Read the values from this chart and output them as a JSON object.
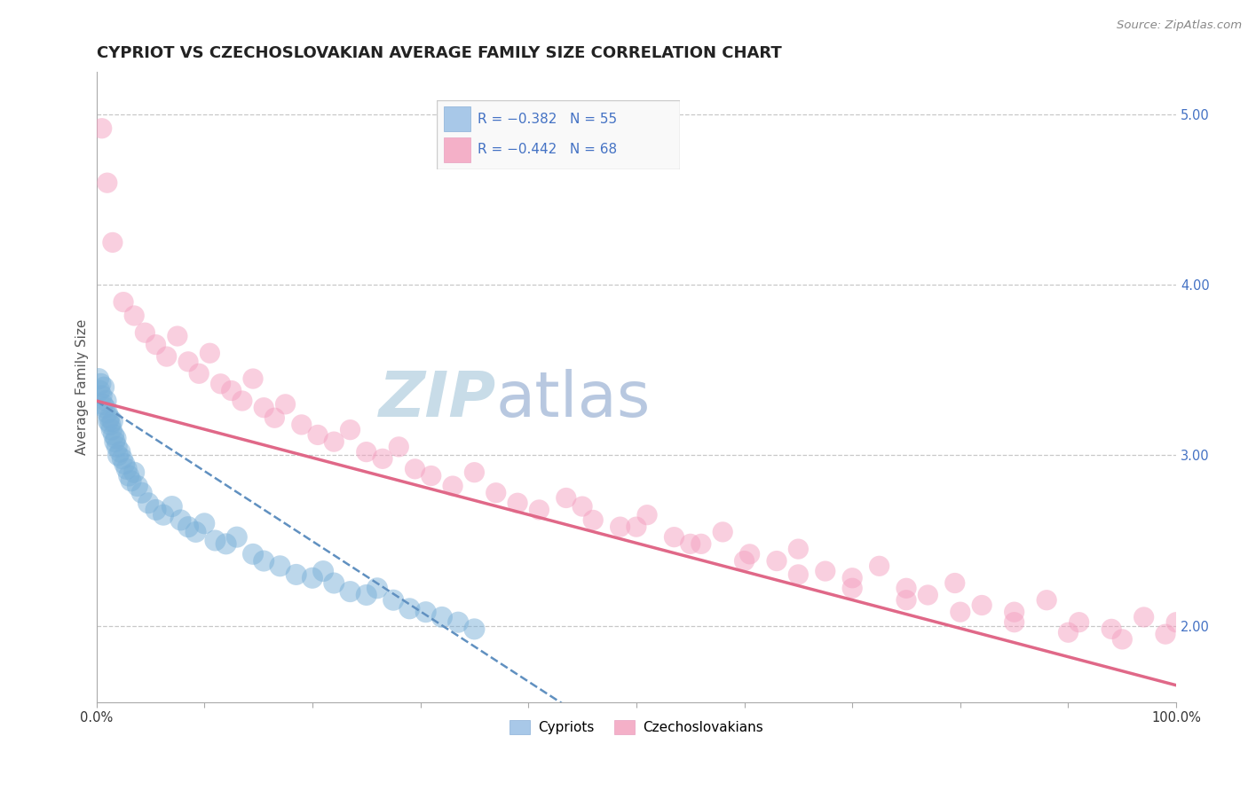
{
  "title": "CYPRIOT VS CZECHOSLOVAKIAN AVERAGE FAMILY SIZE CORRELATION CHART",
  "source": "Source: ZipAtlas.com",
  "ylabel": "Average Family Size",
  "xlim": [
    0,
    100
  ],
  "ylim": [
    1.55,
    5.25
  ],
  "yticks": [
    2.0,
    3.0,
    4.0,
    5.0
  ],
  "xtick_positions": [
    0,
    10,
    20,
    30,
    40,
    50,
    60,
    70,
    80,
    90,
    100
  ],
  "xtick_labels_show": {
    "0": "0.0%",
    "100": "100.0%"
  },
  "ytick_labels": [
    "2.00",
    "3.00",
    "4.00",
    "5.00"
  ],
  "legend_r1": "R = −0.382   N = 55",
  "legend_r2": "R = −0.442   N = 68",
  "legend_color1": "#a8c8e8",
  "legend_color2": "#f4b0c8",
  "legend_text_color": "#4472c4",
  "cypriot_color": "#7ab0d8",
  "czechoslovakian_color": "#f4a0c0",
  "cypriot_line_color": "#6090c0",
  "czechoslovakian_line_color": "#e06888",
  "background_color": "#ffffff",
  "grid_color": "#c8c8c8",
  "watermark_zip": "ZIP",
  "watermark_atlas": "atlas",
  "watermark_color_zip": "#c8dce8",
  "watermark_color_atlas": "#b8c8e0",
  "cypriot_x": [
    0.2,
    0.3,
    0.4,
    0.5,
    0.6,
    0.7,
    0.8,
    0.9,
    1.0,
    1.1,
    1.2,
    1.3,
    1.4,
    1.5,
    1.6,
    1.7,
    1.8,
    1.9,
    2.0,
    2.2,
    2.4,
    2.6,
    2.8,
    3.0,
    3.2,
    3.5,
    3.8,
    4.2,
    4.8,
    5.5,
    6.2,
    7.0,
    7.8,
    8.5,
    9.2,
    10.0,
    11.0,
    12.0,
    13.0,
    14.5,
    15.5,
    17.0,
    18.5,
    20.0,
    21.0,
    22.0,
    23.5,
    25.0,
    26.0,
    27.5,
    29.0,
    30.5,
    32.0,
    33.5,
    35.0
  ],
  "cypriot_y": [
    3.45,
    3.38,
    3.42,
    3.35,
    3.3,
    3.4,
    3.28,
    3.32,
    3.25,
    3.2,
    3.22,
    3.18,
    3.15,
    3.2,
    3.12,
    3.08,
    3.1,
    3.05,
    3.0,
    3.02,
    2.98,
    2.95,
    2.92,
    2.88,
    2.85,
    2.9,
    2.82,
    2.78,
    2.72,
    2.68,
    2.65,
    2.7,
    2.62,
    2.58,
    2.55,
    2.6,
    2.5,
    2.48,
    2.52,
    2.42,
    2.38,
    2.35,
    2.3,
    2.28,
    2.32,
    2.25,
    2.2,
    2.18,
    2.22,
    2.15,
    2.1,
    2.08,
    2.05,
    2.02,
    1.98
  ],
  "czechoslovakian_x": [
    0.5,
    1.0,
    1.5,
    2.5,
    3.5,
    4.5,
    5.5,
    6.5,
    7.5,
    8.5,
    9.5,
    10.5,
    11.5,
    12.5,
    13.5,
    14.5,
    15.5,
    16.5,
    17.5,
    19.0,
    20.5,
    22.0,
    23.5,
    25.0,
    26.5,
    28.0,
    29.5,
    31.0,
    33.0,
    35.0,
    37.0,
    39.0,
    41.0,
    43.5,
    46.0,
    48.5,
    51.0,
    53.5,
    56.0,
    58.0,
    60.5,
    63.0,
    65.0,
    67.5,
    70.0,
    72.5,
    75.0,
    77.0,
    79.5,
    82.0,
    85.0,
    88.0,
    91.0,
    94.0,
    97.0,
    99.0,
    65.0,
    70.0,
    75.0,
    80.0,
    85.0,
    90.0,
    95.0,
    100.0,
    50.0,
    55.0,
    60.0,
    45.0
  ],
  "czechoslovakian_y": [
    4.92,
    4.6,
    4.25,
    3.9,
    3.82,
    3.72,
    3.65,
    3.58,
    3.7,
    3.55,
    3.48,
    3.6,
    3.42,
    3.38,
    3.32,
    3.45,
    3.28,
    3.22,
    3.3,
    3.18,
    3.12,
    3.08,
    3.15,
    3.02,
    2.98,
    3.05,
    2.92,
    2.88,
    2.82,
    2.9,
    2.78,
    2.72,
    2.68,
    2.75,
    2.62,
    2.58,
    2.65,
    2.52,
    2.48,
    2.55,
    2.42,
    2.38,
    2.45,
    2.32,
    2.28,
    2.35,
    2.22,
    2.18,
    2.25,
    2.12,
    2.08,
    2.15,
    2.02,
    1.98,
    2.05,
    1.95,
    2.3,
    2.22,
    2.15,
    2.08,
    2.02,
    1.96,
    1.92,
    2.02,
    2.58,
    2.48,
    2.38,
    2.7
  ],
  "cypriot_reg": [
    0,
    100,
    3.32,
    -0.8
  ],
  "czechoslovakian_reg": [
    0,
    100,
    3.32,
    1.65
  ],
  "title_fontsize": 13,
  "axis_label_fontsize": 11,
  "tick_fontsize": 10.5,
  "source_fontsize": 9.5
}
